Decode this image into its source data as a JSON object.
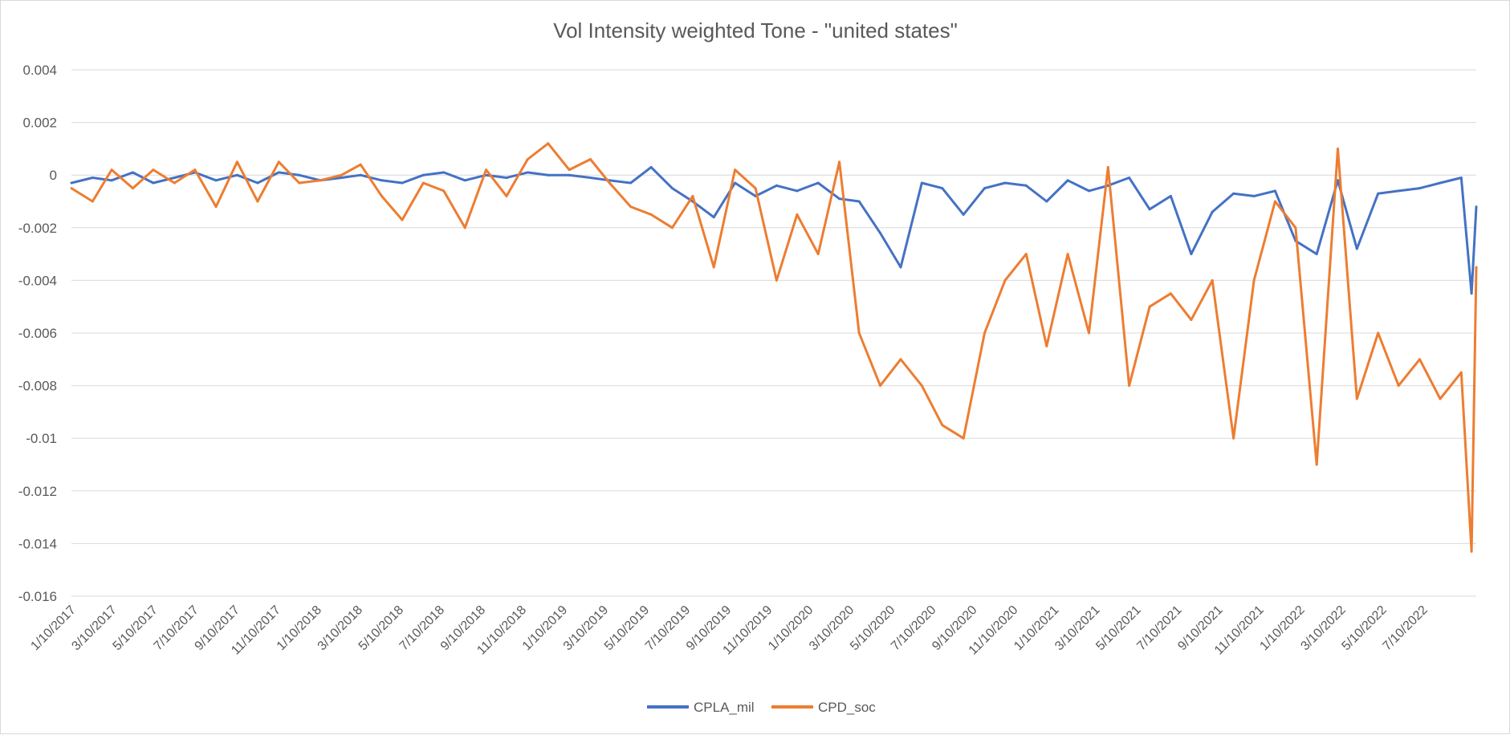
{
  "chart_data": {
    "type": "line",
    "title": "Vol Intensity weighted Tone - \"united states\"",
    "xlabel": "",
    "ylabel": "",
    "ylim": [
      -0.016,
      0.004
    ],
    "yticks": [
      0.004,
      0.002,
      0,
      -0.002,
      -0.004,
      -0.006,
      -0.008,
      -0.01,
      -0.012,
      -0.014,
      -0.016
    ],
    "yticklabels": [
      "0.004",
      "0.002",
      "0",
      "-0.002",
      "-0.004",
      "-0.006",
      "-0.008",
      "-0.01",
      "-0.012",
      "-0.014",
      "-0.016"
    ],
    "xlim": [
      "2017-01-10",
      "2022-09-01"
    ],
    "xticklabels": [
      "1/10/2017",
      "3/10/2017",
      "5/10/2017",
      "7/10/2017",
      "9/10/2017",
      "11/10/2017",
      "1/10/2018",
      "3/10/2018",
      "5/10/2018",
      "7/10/2018",
      "9/10/2018",
      "11/10/2018",
      "1/10/2019",
      "3/10/2019",
      "5/10/2019",
      "7/10/2019",
      "9/10/2019",
      "11/10/2019",
      "1/10/2020",
      "3/10/2020",
      "5/10/2020",
      "7/10/2020",
      "9/10/2020",
      "11/10/2020",
      "1/10/2021",
      "3/10/2021",
      "5/10/2021",
      "7/10/2021",
      "9/10/2021",
      "11/10/2021",
      "1/10/2022",
      "3/10/2022",
      "5/10/2022",
      "7/10/2022"
    ],
    "grid": true,
    "legend_position": "bottom",
    "series": [
      {
        "name": "CPLA_mil",
        "color": "#4472C4",
        "x": [
          "2017-01-10",
          "2017-02-10",
          "2017-03-10",
          "2017-04-10",
          "2017-05-10",
          "2017-06-10",
          "2017-07-10",
          "2017-08-10",
          "2017-09-10",
          "2017-10-10",
          "2017-11-10",
          "2017-12-10",
          "2018-01-10",
          "2018-02-10",
          "2018-03-10",
          "2018-04-10",
          "2018-05-10",
          "2018-06-10",
          "2018-07-10",
          "2018-08-10",
          "2018-09-10",
          "2018-10-10",
          "2018-11-10",
          "2018-12-10",
          "2019-01-10",
          "2019-02-10",
          "2019-03-10",
          "2019-04-10",
          "2019-05-10",
          "2019-06-10",
          "2019-07-10",
          "2019-08-10",
          "2019-09-10",
          "2019-10-10",
          "2019-11-10",
          "2019-12-10",
          "2020-01-10",
          "2020-02-10",
          "2020-03-10",
          "2020-04-10",
          "2020-05-10",
          "2020-06-10",
          "2020-07-10",
          "2020-08-10",
          "2020-09-10",
          "2020-10-10",
          "2020-11-10",
          "2020-12-10",
          "2021-01-10",
          "2021-02-10",
          "2021-03-10",
          "2021-04-10",
          "2021-05-10",
          "2021-06-10",
          "2021-07-10",
          "2021-08-10",
          "2021-09-10",
          "2021-10-10",
          "2021-11-10",
          "2021-12-10",
          "2022-01-10",
          "2022-02-10",
          "2022-03-10",
          "2022-04-10",
          "2022-05-10",
          "2022-06-10",
          "2022-07-10",
          "2022-08-10",
          "2022-08-25",
          "2022-09-01"
        ],
        "values": [
          -0.0003,
          -0.0001,
          -0.0002,
          0.0001,
          -0.0003,
          -0.0001,
          0.0001,
          -0.0002,
          0.0,
          -0.0003,
          0.0001,
          0.0,
          -0.0002,
          -0.0001,
          0.0,
          -0.0002,
          -0.0003,
          0.0,
          0.0001,
          -0.0002,
          0.0,
          -0.0001,
          0.0001,
          0.0,
          0.0,
          -0.0001,
          -0.0002,
          -0.0003,
          0.0003,
          -0.0005,
          -0.001,
          -0.0016,
          -0.0003,
          -0.0008,
          -0.0004,
          -0.0006,
          -0.0003,
          -0.0009,
          -0.001,
          -0.0022,
          -0.0035,
          -0.0003,
          -0.0005,
          -0.0015,
          -0.0005,
          -0.0003,
          -0.0004,
          -0.001,
          -0.0002,
          -0.0006,
          -0.0004,
          -0.0001,
          -0.0013,
          -0.0008,
          -0.003,
          -0.0014,
          -0.0007,
          -0.0008,
          -0.0006,
          -0.0025,
          -0.003,
          -0.0002,
          -0.0028,
          -0.0007,
          -0.0006,
          -0.0005,
          -0.0003,
          -0.0001,
          -0.0045,
          -0.0012
        ]
      },
      {
        "name": "CPD_soc",
        "color": "#ED7D31",
        "x": [
          "2017-01-10",
          "2017-02-10",
          "2017-03-10",
          "2017-04-10",
          "2017-05-10",
          "2017-06-10",
          "2017-07-10",
          "2017-08-10",
          "2017-09-10",
          "2017-10-10",
          "2017-11-10",
          "2017-12-10",
          "2018-01-10",
          "2018-02-10",
          "2018-03-10",
          "2018-04-10",
          "2018-05-10",
          "2018-06-10",
          "2018-07-10",
          "2018-08-10",
          "2018-09-10",
          "2018-10-10",
          "2018-11-10",
          "2018-12-10",
          "2019-01-10",
          "2019-02-10",
          "2019-03-10",
          "2019-04-10",
          "2019-05-10",
          "2019-06-10",
          "2019-07-10",
          "2019-08-10",
          "2019-09-10",
          "2019-10-10",
          "2019-11-10",
          "2019-12-10",
          "2020-01-10",
          "2020-02-10",
          "2020-03-10",
          "2020-04-10",
          "2020-05-10",
          "2020-06-10",
          "2020-07-10",
          "2020-08-10",
          "2020-09-10",
          "2020-10-10",
          "2020-11-10",
          "2020-12-10",
          "2021-01-10",
          "2021-02-10",
          "2021-03-10",
          "2021-04-10",
          "2021-05-10",
          "2021-06-10",
          "2021-07-10",
          "2021-08-10",
          "2021-09-10",
          "2021-10-10",
          "2021-11-10",
          "2021-12-10",
          "2022-01-10",
          "2022-02-10",
          "2022-03-10",
          "2022-04-10",
          "2022-05-10",
          "2022-06-10",
          "2022-07-10",
          "2022-08-10",
          "2022-08-25",
          "2022-09-01"
        ],
        "values": [
          -0.0005,
          -0.001,
          0.0002,
          -0.0005,
          0.0002,
          -0.0003,
          0.0002,
          -0.0012,
          0.0005,
          -0.001,
          0.0005,
          -0.0003,
          -0.0002,
          0.0,
          0.0004,
          -0.0008,
          -0.0017,
          -0.0003,
          -0.0006,
          -0.002,
          0.0002,
          -0.0008,
          0.0006,
          0.0012,
          0.0002,
          0.0006,
          -0.0003,
          -0.0012,
          -0.0015,
          -0.002,
          -0.0008,
          -0.0035,
          0.0002,
          -0.0005,
          -0.004,
          -0.0015,
          -0.003,
          0.0005,
          -0.006,
          -0.008,
          -0.007,
          -0.008,
          -0.0095,
          -0.01,
          -0.006,
          -0.004,
          -0.003,
          -0.0065,
          -0.003,
          -0.006,
          0.0003,
          -0.008,
          -0.005,
          -0.0045,
          -0.0055,
          -0.004,
          -0.01,
          -0.004,
          -0.001,
          -0.002,
          -0.011,
          0.001,
          -0.0085,
          -0.006,
          -0.008,
          -0.007,
          -0.0085,
          -0.0075,
          -0.0143,
          -0.0035
        ]
      }
    ]
  }
}
